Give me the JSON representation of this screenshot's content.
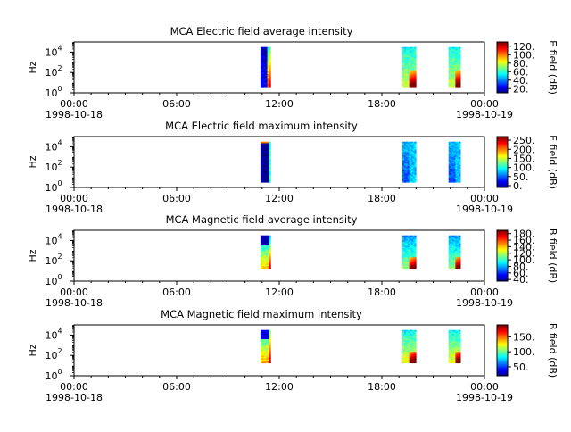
{
  "chart_data": [
    {
      "type": "heatmap",
      "title": "MCA  Electric field average intensity",
      "ylabel": "Hz",
      "y_scale": "log",
      "y_ticks": [
        {
          "base": "10",
          "exp": "0"
        },
        {
          "base": "10",
          "exp": "2"
        },
        {
          "base": "10",
          "exp": "4"
        }
      ],
      "x_ticks": [
        "00:00",
        "06:00",
        "12:00",
        "18:00",
        "00:00"
      ],
      "x_tick_hours": [
        0,
        6,
        12,
        18,
        24
      ],
      "date_start": "1998-10-18",
      "date_end": "1998-10-19",
      "colorbar_label": "E field (dB)",
      "colorbar_ticks": [
        "20.",
        "40.",
        "60.",
        "80.",
        "100.",
        "120."
      ],
      "colorbar_values": [
        20,
        40,
        60,
        80,
        100,
        120
      ],
      "colorbar_range": [
        10,
        130
      ],
      "style": "avg-electric"
    },
    {
      "type": "heatmap",
      "title": "MCA  Electric field maximum intensity",
      "ylabel": "Hz",
      "y_scale": "log",
      "y_ticks": [
        {
          "base": "10",
          "exp": "0"
        },
        {
          "base": "10",
          "exp": "2"
        },
        {
          "base": "10",
          "exp": "4"
        }
      ],
      "x_ticks": [
        "00:00",
        "06:00",
        "12:00",
        "18:00",
        "00:00"
      ],
      "x_tick_hours": [
        0,
        6,
        12,
        18,
        24
      ],
      "date_start": "1998-10-18",
      "date_end": "1998-10-19",
      "colorbar_label": "E field (dB)",
      "colorbar_ticks": [
        "0.",
        "50.",
        "100.",
        "150.",
        "200.",
        "250."
      ],
      "colorbar_values": [
        0,
        50,
        100,
        150,
        200,
        250
      ],
      "colorbar_range": [
        -10,
        270
      ],
      "style": "max-electric"
    },
    {
      "type": "heatmap",
      "title": "MCA  Magnetic field average intensity",
      "ylabel": "Hz",
      "y_scale": "log",
      "y_ticks": [
        {
          "base": "10",
          "exp": "0"
        },
        {
          "base": "10",
          "exp": "2"
        },
        {
          "base": "10",
          "exp": "4"
        }
      ],
      "x_ticks": [
        "00:00",
        "06:00",
        "12:00",
        "18:00",
        "00:00"
      ],
      "x_tick_hours": [
        0,
        6,
        12,
        18,
        24
      ],
      "date_start": "1998-10-18",
      "date_end": "1998-10-19",
      "colorbar_label": "B field (dB)",
      "colorbar_ticks": [
        "40.",
        "60.",
        "80.",
        "100.",
        "120.",
        "140.",
        "160.",
        "180."
      ],
      "colorbar_values": [
        40,
        60,
        80,
        100,
        120,
        140,
        160,
        180
      ],
      "colorbar_range": [
        35,
        190
      ],
      "style": "avg-magnetic"
    },
    {
      "type": "heatmap",
      "title": "MCA  Magnetic field maximum intensity",
      "ylabel": "Hz",
      "y_scale": "log",
      "y_ticks": [
        {
          "base": "10",
          "exp": "0"
        },
        {
          "base": "10",
          "exp": "2"
        },
        {
          "base": "10",
          "exp": "4"
        }
      ],
      "x_ticks": [
        "00:00",
        "06:00",
        "12:00",
        "18:00",
        "00:00"
      ],
      "x_tick_hours": [
        0,
        6,
        12,
        18,
        24
      ],
      "date_start": "1998-10-18",
      "date_end": "1998-10-19",
      "colorbar_label": "B field (dB)",
      "colorbar_ticks": [
        "50.",
        "100.",
        "150."
      ],
      "colorbar_values": [
        50,
        100,
        150
      ],
      "colorbar_range": [
        20,
        190
      ],
      "style": "max-magnetic"
    }
  ],
  "data_intervals_hours": [
    [
      10.9,
      11.5
    ],
    [
      19.2,
      20.0
    ],
    [
      21.9,
      22.6
    ]
  ]
}
